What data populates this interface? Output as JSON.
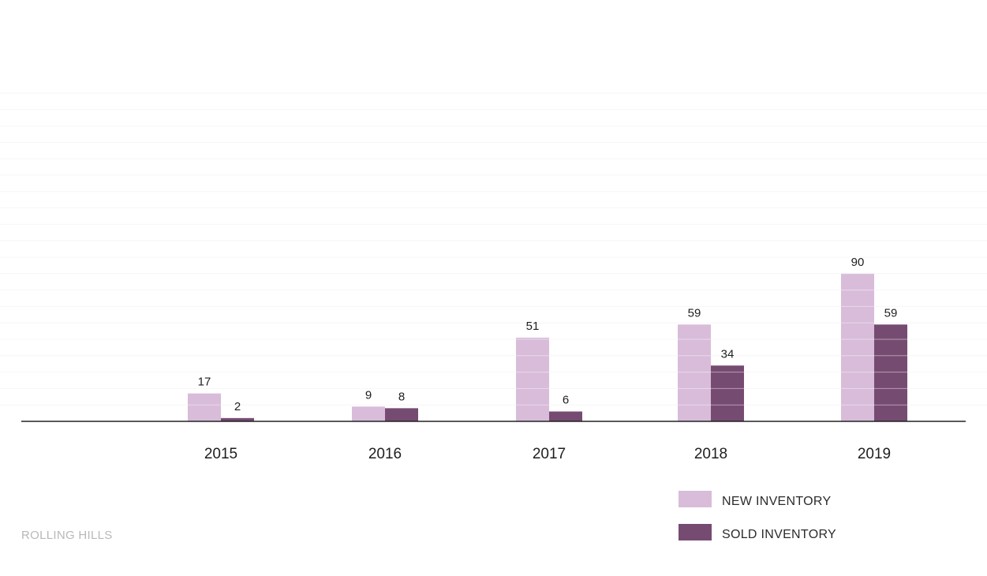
{
  "chart_data": {
    "type": "bar",
    "categories": [
      "2015",
      "2016",
      "2017",
      "2018",
      "2019"
    ],
    "series": [
      {
        "name": "NEW INVENTORY",
        "values": [
          17,
          9,
          51,
          59,
          90
        ],
        "color": "#d8bcd9"
      },
      {
        "name": "SOLD INVENTORY",
        "values": [
          2,
          8,
          6,
          34,
          59
        ],
        "color": "#764b72"
      }
    ],
    "ylim": [
      0,
      200
    ],
    "grid_step": 10,
    "grid": true,
    "legend_position": "bottom-right",
    "data_labels": true
  },
  "footer": {
    "label": "ROLLING HILLS"
  }
}
